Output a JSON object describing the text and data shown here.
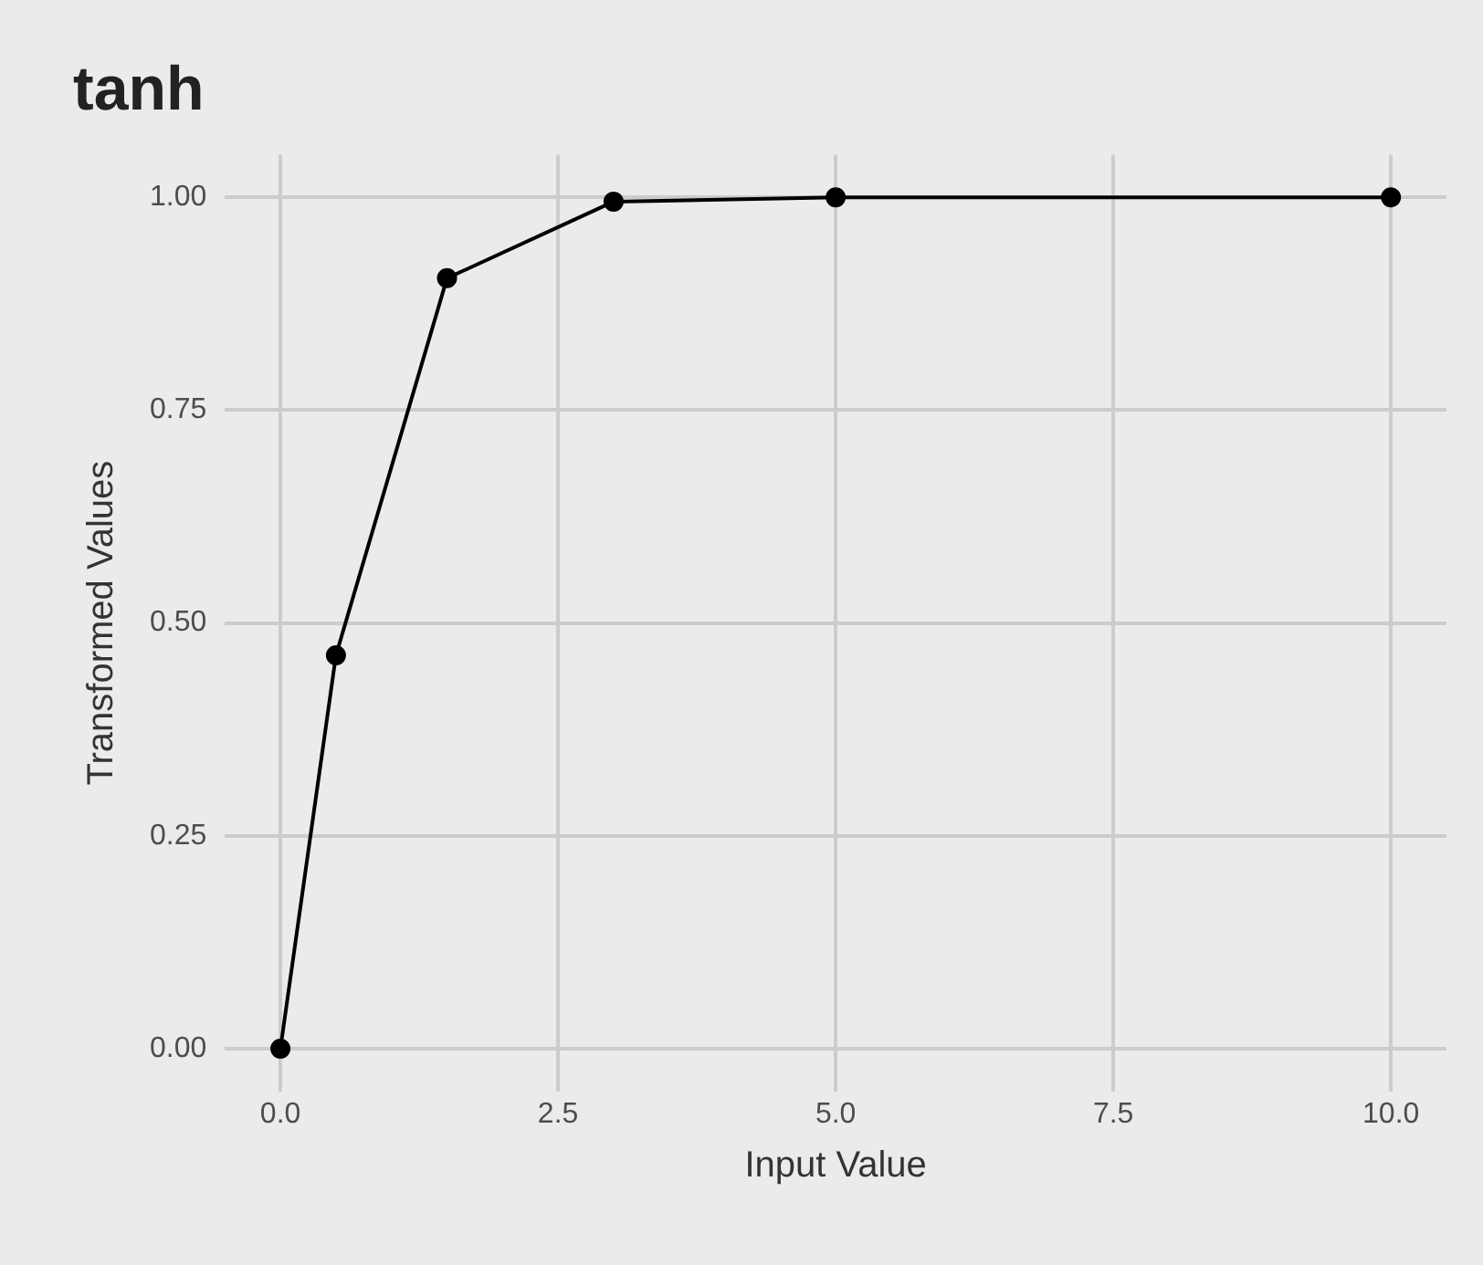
{
  "chart_data": {
    "type": "line",
    "title": "tanh",
    "xlabel": "Input Value",
    "ylabel": "Transformed Values",
    "x": [
      0,
      0.5,
      1.5,
      3,
      5,
      10
    ],
    "series": [
      {
        "color": "#000000",
        "values": [
          0,
          0.462,
          0.905,
          0.995,
          1,
          1
        ]
      }
    ],
    "xlim": [
      -0.5,
      10.5
    ],
    "ylim": [
      -0.05,
      1.05
    ],
    "xticks": [
      {
        "value": 0,
        "label": "0.0"
      },
      {
        "value": 2.5,
        "label": "2.5"
      },
      {
        "value": 5,
        "label": "5.0"
      },
      {
        "value": 7.5,
        "label": "7.5"
      },
      {
        "value": 10,
        "label": "10.0"
      }
    ],
    "yticks": [
      {
        "value": 0,
        "label": "0.00"
      },
      {
        "value": 0.25,
        "label": "0.25"
      },
      {
        "value": 0.5,
        "label": "0.50"
      },
      {
        "value": 0.75,
        "label": "0.75"
      },
      {
        "value": 1,
        "label": "1.00"
      }
    ],
    "grid": true,
    "marker": "circle",
    "line_style": "solid"
  }
}
